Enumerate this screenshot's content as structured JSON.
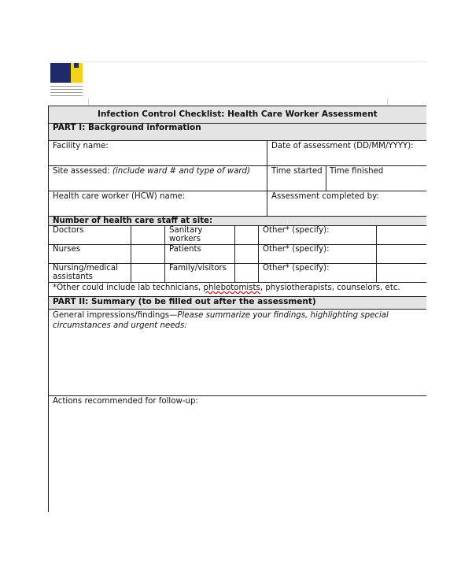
{
  "logo": {
    "text": "INTERNATIONAL TRAINING AND EDUCATION CENTER FOR HEALTH",
    "colors": {
      "blue": "#1f2a6b",
      "yellow": "#f2d21b"
    }
  },
  "form": {
    "title": "Infection Control Checklist: Health Care Worker Assessment",
    "part1": {
      "heading": "PART I: Background information",
      "facility_name": "Facility name:",
      "date_of_assessment": "Date of assessment (DD/MM/YYYY):",
      "site_assessed": "Site assessed: ",
      "site_assessed_hint": "(include ward # and type of ward)",
      "time_started": "Time started",
      "time_finished": "Time finished",
      "hcw_name": "Health care worker (HCW) name:",
      "assessment_completed_by": "Assessment completed by:",
      "staff_heading": "Number of health care staff at site:",
      "staff_rows": [
        {
          "a": "Doctors",
          "b1": "Sanitary",
          "b2": "workers",
          "c": "Other* (specify):"
        },
        {
          "a": "Nurses",
          "b1": "Patients",
          "b2": "",
          "c": "Other* (specify):"
        },
        {
          "a1": "Nursing/medical",
          "a2": "assistants",
          "b1": "Family/visitors",
          "b2": "",
          "c": "Other* (specify):"
        }
      ],
      "footnote_pre": "*Other could include lab technicians, ",
      "footnote_word": "phlebotomists",
      "footnote_post": ", physiotherapists, counselors, etc."
    },
    "part2": {
      "heading": "PART II: Summary (to be filled out after the assessment)",
      "general_label": "General impressions/findings—",
      "general_hint_1": "Please summarize your findings, highlighting special",
      "general_hint_2": "circumstances and urgent needs:",
      "actions_label": "Actions recommended for follow-up:"
    }
  }
}
